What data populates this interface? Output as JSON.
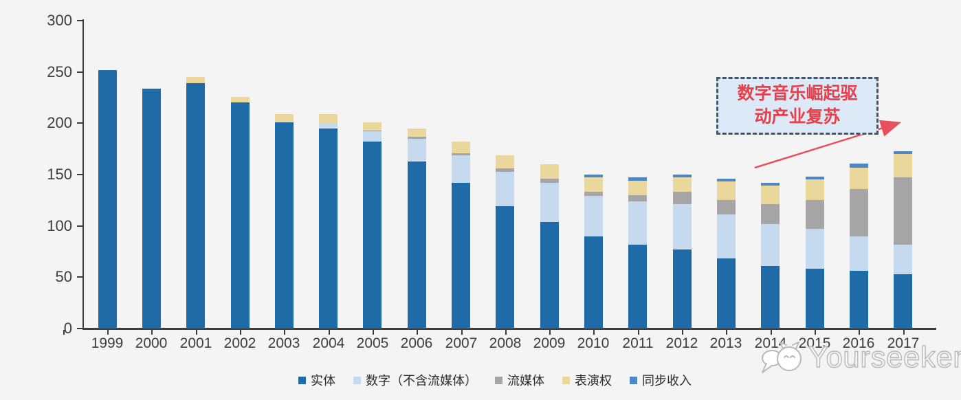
{
  "chart_data": {
    "type": "bar",
    "stacked": true,
    "title": "",
    "xlabel": "",
    "ylabel": "",
    "categories": [
      "1999",
      "2000",
      "2001",
      "2002",
      "2003",
      "2004",
      "2005",
      "2006",
      "2007",
      "2008",
      "2009",
      "2010",
      "2011",
      "2012",
      "2013",
      "2014",
      "2015",
      "2016",
      "2017"
    ],
    "series": [
      {
        "name": "实体",
        "color": "#1e6ba8",
        "values": [
          252,
          234,
          239,
          220,
          201,
          195,
          182,
          163,
          142,
          119,
          104,
          90,
          82,
          77,
          68,
          61,
          58,
          56,
          53
        ]
      },
      {
        "name": "数字（不含流媒体）",
        "color": "#c5daee",
        "values": [
          0,
          0,
          0,
          0,
          0,
          5,
          10,
          22,
          27,
          34,
          38,
          39,
          42,
          44,
          43,
          41,
          39,
          34,
          29
        ]
      },
      {
        "name": "流媒体",
        "color": "#a5a5a5",
        "values": [
          0,
          0,
          0,
          0,
          0,
          0,
          1,
          2,
          2,
          3,
          4,
          4,
          6,
          12,
          14,
          19,
          28,
          46,
          65
        ]
      },
      {
        "name": "表演权",
        "color": "#ead79b",
        "values": [
          0,
          0,
          6,
          6,
          8,
          9,
          8,
          8,
          11,
          13,
          14,
          14,
          14,
          14,
          18,
          18,
          20,
          21,
          23
        ]
      },
      {
        "name": "同步收入",
        "color": "#4c86c4",
        "values": [
          0,
          0,
          0,
          0,
          0,
          0,
          0,
          0,
          0,
          0,
          0,
          3,
          3,
          3,
          3,
          3,
          3,
          4,
          3
        ]
      }
    ],
    "ylim": [
      0,
      300
    ],
    "y_ticks": [
      0,
      50,
      100,
      150,
      200,
      250,
      300
    ],
    "grid": false,
    "legend_position": "bottom"
  },
  "annotation": {
    "line1": "数字音乐崛起驱",
    "line2": "动产业复苏",
    "box_fill": "#dce9f7",
    "box_border": "#44546a",
    "text_color": "#e7404b",
    "arrow_color": "#e8515c"
  },
  "watermark": {
    "text": "Yourseeker",
    "logo": "speech-bubble-cat-icon",
    "color": "#b9b9b9"
  }
}
